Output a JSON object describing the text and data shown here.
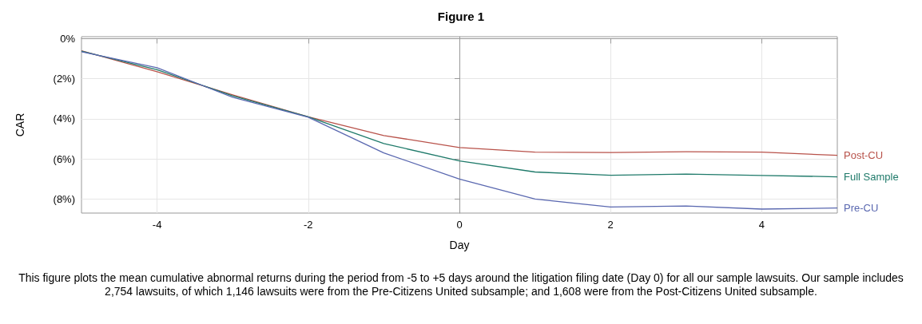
{
  "chart_data": {
    "type": "line",
    "title": "Figure 1",
    "xlabel": "Day",
    "ylabel": "CAR",
    "x": [
      -5,
      -4,
      -3,
      -2,
      -1,
      0,
      1,
      2,
      3,
      4,
      5
    ],
    "series": [
      {
        "name": "Post-CU",
        "color": "#b8524a",
        "values": [
          -0.6,
          -1.65,
          -2.8,
          -3.9,
          -4.83,
          -5.43,
          -5.66,
          -5.68,
          -5.64,
          -5.66,
          -5.82
        ]
      },
      {
        "name": "Full Sample",
        "color": "#1f7a6a",
        "values": [
          -0.62,
          -1.55,
          -2.85,
          -3.9,
          -5.23,
          -6.1,
          -6.65,
          -6.81,
          -6.75,
          -6.82,
          -6.89
        ]
      },
      {
        "name": "Pre-CU",
        "color": "#5a68b0",
        "values": [
          -0.65,
          -1.45,
          -2.92,
          -3.92,
          -5.7,
          -7.0,
          -8.0,
          -8.4,
          -8.35,
          -8.5,
          -8.45
        ]
      }
    ],
    "xlim": [
      -5,
      5
    ],
    "xticks": [
      -4,
      -2,
      0,
      2,
      4
    ],
    "ylim": [
      -8.7,
      0.1
    ],
    "yticks": [
      {
        "value": 0,
        "label": "0%"
      },
      {
        "value": -2,
        "label": "(2%)"
      },
      {
        "value": -4,
        "label": "(4%)"
      },
      {
        "value": -6,
        "label": "(6%)"
      },
      {
        "value": -8,
        "label": "(8%)"
      }
    ],
    "grid": true,
    "legend": false,
    "marker": "none",
    "line_style": "solid",
    "annotations": [
      "This figure plots the mean cumulative abnormal returns during the period from -5 to +5 days around the litigation filing date (Day 0) for all our sample lawsuits. Our sample includes 2,754 lawsuits, of which 1,146 lawsuits were from the Pre-Citizens United subsample; and 1,608 were from the Post-Citizens United subsample."
    ]
  }
}
